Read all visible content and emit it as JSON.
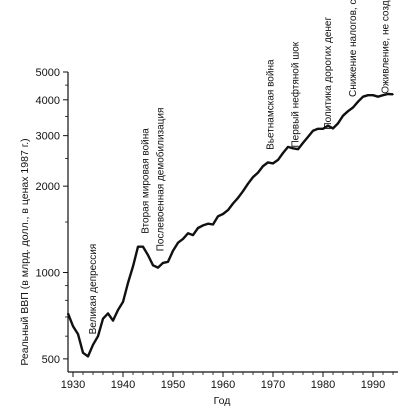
{
  "chart_data": {
    "type": "line",
    "title": "",
    "xlabel": "Год",
    "ylabel": "Реальный ВВП (в млрд. долл., в ценах 1987 г.)",
    "y_scale": "log",
    "xlim": [
      1929,
      1995
    ],
    "ylim": [
      450,
      5000
    ],
    "xticks": [
      1930,
      1940,
      1950,
      1960,
      1970,
      1980,
      1990
    ],
    "xtick_labels": [
      "1930",
      "1940",
      "1950",
      "1960",
      "1970",
      "1980",
      "1990"
    ],
    "yticks": [
      500,
      1000,
      2000,
      3000,
      4000,
      5000
    ],
    "ytick_labels": [
      "500",
      "1000",
      "2000",
      "3000",
      "4000",
      "5000"
    ],
    "grid": false,
    "series": [
      {
        "name": "",
        "color": "#111111",
        "x": [
          1929,
          1930,
          1931,
          1932,
          1933,
          1934,
          1935,
          1936,
          1937,
          1938,
          1939,
          1940,
          1941,
          1942,
          1943,
          1944,
          1945,
          1946,
          1947,
          1948,
          1949,
          1950,
          1951,
          1952,
          1953,
          1954,
          1955,
          1956,
          1957,
          1958,
          1959,
          1960,
          1961,
          1962,
          1963,
          1964,
          1965,
          1966,
          1967,
          1968,
          1969,
          1970,
          1971,
          1972,
          1973,
          1974,
          1975,
          1976,
          1977,
          1978,
          1979,
          1980,
          1981,
          1982,
          1983,
          1984,
          1985,
          1986,
          1987,
          1988,
          1989,
          1990,
          1991,
          1992,
          1993,
          1994
        ],
        "y": [
          720,
          650,
          610,
          525,
          510,
          560,
          600,
          690,
          720,
          680,
          740,
          790,
          920,
          1050,
          1230,
          1230,
          1150,
          1060,
          1040,
          1080,
          1090,
          1190,
          1270,
          1310,
          1370,
          1350,
          1430,
          1460,
          1480,
          1470,
          1570,
          1600,
          1650,
          1740,
          1820,
          1920,
          2040,
          2150,
          2230,
          2350,
          2420,
          2400,
          2470,
          2610,
          2740,
          2710,
          2690,
          2830,
          2970,
          3120,
          3170,
          3170,
          3250,
          3180,
          3310,
          3520,
          3650,
          3760,
          3940,
          4100,
          4150,
          4150,
          4100,
          4150,
          4190,
          4180
        ]
      }
    ],
    "annotations": [
      {
        "text": "Великая депрессия",
        "x": 1934,
        "y": 580
      },
      {
        "text": "Вторая мировая война",
        "x": 1944.5,
        "y": 1300
      },
      {
        "text": "Послевоенная демобилизация",
        "x": 1947.5,
        "y": 1130
      },
      {
        "text": "Вьетнамская война",
        "x": 1969.5,
        "y": 2550
      },
      {
        "text": "Первый нефтяной шок",
        "x": 1974.5,
        "y": 2600
      },
      {
        "text": "Политика дорогих денег",
        "x": 1981,
        "y": 3000
      },
      {
        "text": "Снижение налогов, стимулирующее сферу предло-жения",
        "x": 1986,
        "y": 3900
      },
      {
        "text": "Оживление, не создающее занятость",
        "x": 1992.5,
        "y": 4000
      }
    ]
  }
}
